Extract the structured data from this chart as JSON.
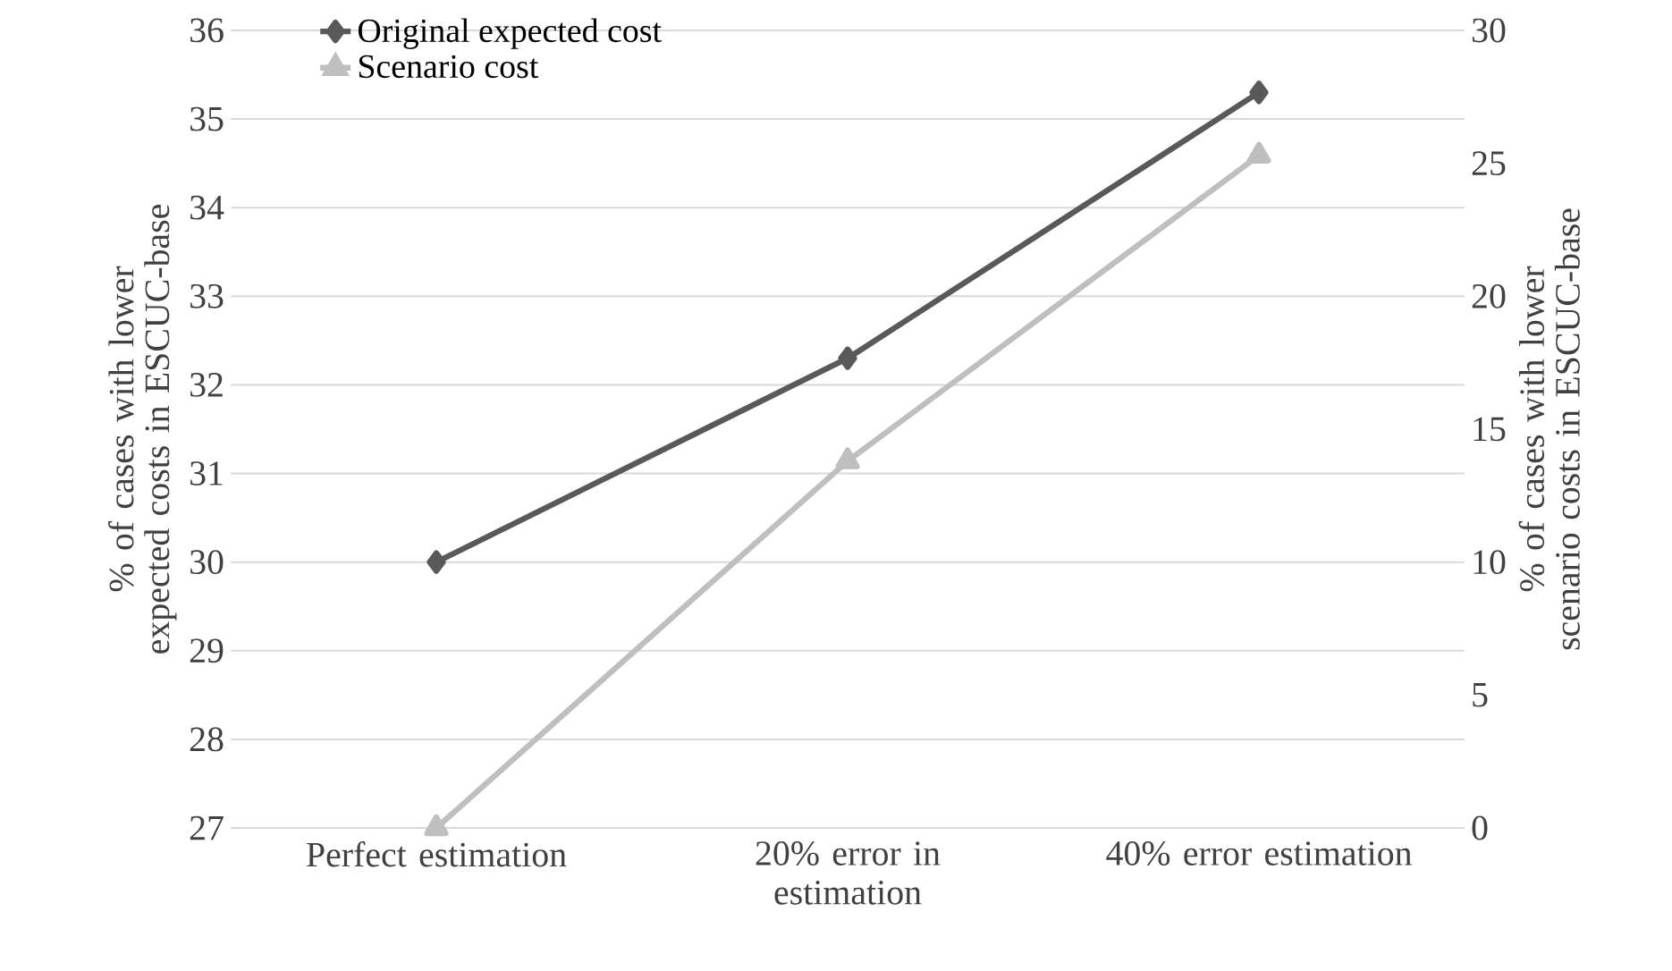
{
  "chart_data": {
    "type": "line",
    "categories": [
      "Perfect estimation",
      "20% error in estimation",
      "40% error estimation"
    ],
    "series": [
      {
        "name": "Original expected cost",
        "color": "#595959",
        "marker": "diamond",
        "values": [
          30,
          32.3,
          35.3
        ]
      },
      {
        "name": "Scenario cost",
        "color": "#bfbfbf",
        "marker": "triangle",
        "axis": "y2",
        "values": [
          0,
          13.8,
          25.3
        ]
      }
    ],
    "ylabel": "% of cases with lower expected costs in ESCUC-base",
    "y2label": "% of cases with lower scenario costs in ESCUC-base",
    "ylim": [
      27,
      36
    ],
    "yticks": [
      27,
      28,
      29,
      30,
      31,
      32,
      33,
      34,
      35,
      36
    ],
    "y2lim": [
      0,
      30
    ],
    "y2ticks": [
      0,
      5,
      10,
      15,
      20,
      25,
      30
    ],
    "grid": "y",
    "legend": "top left",
    "line_style": "solid"
  }
}
